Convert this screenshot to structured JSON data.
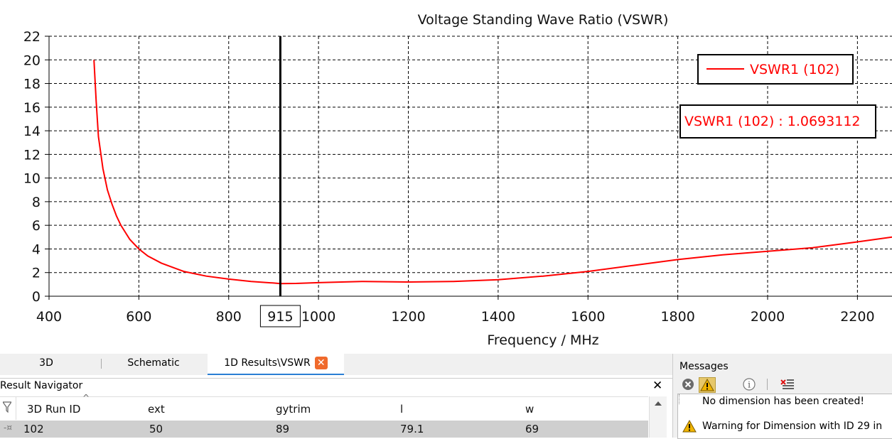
{
  "chart_data": {
    "type": "line",
    "title": "Voltage Standing Wave Ratio (VSWR)",
    "xlabel": "Frequency / MHz",
    "ylabel": "",
    "xlim": [
      400,
      2280
    ],
    "ylim": [
      0,
      22
    ],
    "x_ticks": [
      400,
      600,
      800,
      1000,
      1200,
      1400,
      1600,
      1800,
      2000,
      2200
    ],
    "y_ticks": [
      0,
      2,
      4,
      6,
      8,
      10,
      12,
      14,
      16,
      18,
      20,
      22
    ],
    "grid": true,
    "legend_position": "top-right",
    "series": [
      {
        "name": "VSWR1 (102)",
        "color": "#ff0000",
        "x": [
          500,
          505,
          510,
          520,
          530,
          540,
          550,
          560,
          580,
          600,
          620,
          650,
          700,
          750,
          800,
          850,
          900,
          915,
          950,
          1000,
          1100,
          1200,
          1300,
          1400,
          1500,
          1600,
          1700,
          1800,
          1900,
          2000,
          2100,
          2200,
          2280
        ],
        "y": [
          20,
          16.5,
          13.5,
          10.8,
          9.0,
          7.8,
          6.8,
          6.0,
          4.8,
          4.0,
          3.4,
          2.8,
          2.1,
          1.7,
          1.45,
          1.25,
          1.12,
          1.0693112,
          1.08,
          1.15,
          1.25,
          1.2,
          1.25,
          1.4,
          1.7,
          2.1,
          2.6,
          3.1,
          3.5,
          3.8,
          4.1,
          4.6,
          5.0
        ]
      }
    ],
    "marker": {
      "x": 915,
      "x_label": "915",
      "readout": "VSWR1 (102) : 1.0693112"
    }
  },
  "tabs": [
    {
      "label": "3D"
    },
    {
      "label": "Schematic"
    },
    {
      "label": "1D Results\\VSWR"
    }
  ],
  "navigator": {
    "title": "Result Navigator",
    "columns": [
      "3D Run ID",
      "ext",
      "gytrim",
      "l",
      "w"
    ],
    "rows": [
      {
        "cells": [
          "102",
          "50",
          "89",
          "79.1",
          "69"
        ]
      }
    ]
  },
  "messages": {
    "title": "Messages",
    "items": [
      {
        "text": "No dimension has been created!"
      },
      {
        "text": "Warning for Dimension with ID 29 in"
      }
    ]
  }
}
